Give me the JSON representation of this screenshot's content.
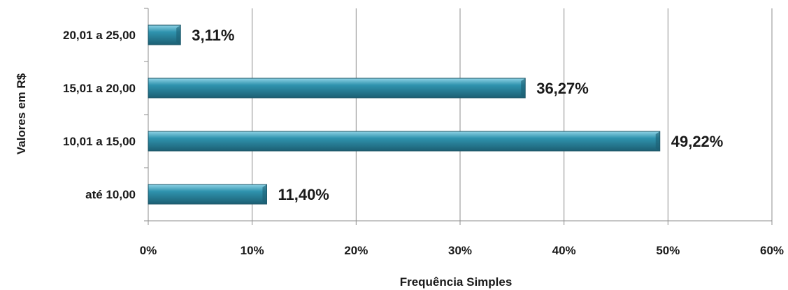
{
  "chart_data": {
    "type": "bar",
    "orientation": "horizontal",
    "categories": [
      "até 10,00",
      "10,01 a 15,00",
      "15,01 a 20,00",
      "20,01 a 25,00"
    ],
    "values": [
      11.4,
      49.22,
      36.27,
      3.11
    ],
    "data_labels": [
      "11,40%",
      "49,22%",
      "36,27%",
      "3,11%"
    ],
    "xlabel": "Frequência Simples",
    "ylabel": "Valores em R$",
    "xlim": [
      0,
      60
    ],
    "x_ticks": [
      0,
      10,
      20,
      30,
      40,
      50,
      60
    ],
    "x_tick_labels": [
      "0%",
      "10%",
      "20%",
      "30%",
      "40%",
      "50%",
      "60%"
    ],
    "grid": "vertical",
    "legend": "none",
    "colors": {
      "bar": "#2f93ae",
      "bar_light": "#8fd3e6",
      "bar_dark": "#1c5f73",
      "grid": "#8c8c8c",
      "axis": "#8c8c8c"
    }
  }
}
